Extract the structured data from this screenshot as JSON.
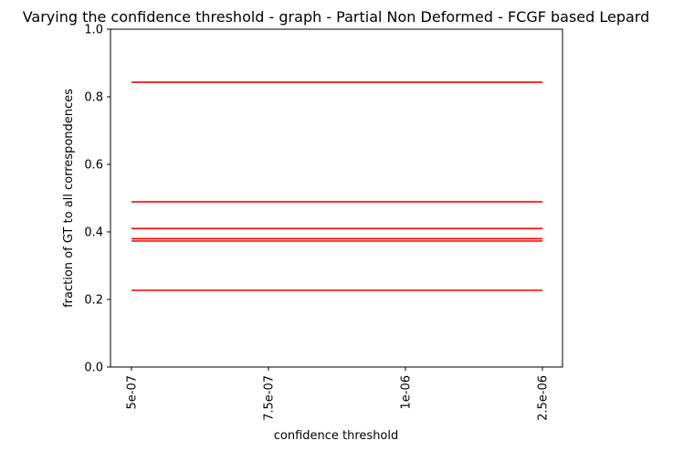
{
  "chart_data": {
    "type": "line",
    "title": "Varying the confidence threshold - graph - Partial Non Deformed -  FCGF based Lepard",
    "xlabel": "confidence threshold",
    "ylabel": "fraction of GT to all correspondences",
    "categories": [
      "5e-07",
      "7.5e-07",
      "1e-06",
      "2.5e-06"
    ],
    "ylim": [
      0.0,
      1.0
    ],
    "yticks": [
      0.0,
      0.2,
      0.4,
      0.6,
      0.8,
      1.0
    ],
    "ytick_labels": [
      "0.0",
      "0.2",
      "0.4",
      "0.6",
      "0.8",
      "1.0"
    ],
    "grid": false,
    "series_color": "#ff0000",
    "series": [
      {
        "name": "series-1",
        "values": [
          0.843,
          0.843,
          0.843,
          0.843
        ]
      },
      {
        "name": "series-2",
        "values": [
          0.489,
          0.489,
          0.489,
          0.489
        ]
      },
      {
        "name": "series-3",
        "values": [
          0.41,
          0.41,
          0.41,
          0.41
        ]
      },
      {
        "name": "series-4",
        "values": [
          0.38,
          0.38,
          0.38,
          0.38
        ]
      },
      {
        "name": "series-5",
        "values": [
          0.373,
          0.373,
          0.373,
          0.373
        ]
      },
      {
        "name": "series-6",
        "values": [
          0.227,
          0.227,
          0.227,
          0.227
        ]
      }
    ]
  }
}
